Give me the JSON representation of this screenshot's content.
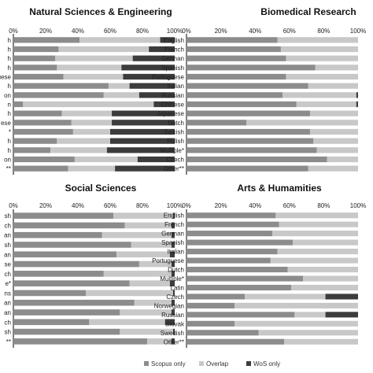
{
  "colors": {
    "scopus_only": "#8c8c8c",
    "overlap": "#c8c8c8",
    "wos_only": "#3c3c3c",
    "axis": "#000000"
  },
  "legend": {
    "scopus_label": "Scopus only",
    "overlap_label": "Overlap",
    "wos_label": "WoS only"
  },
  "chart_data": [
    {
      "type": "bar",
      "orientation": "horizontal",
      "stacked": true,
      "title": "Natural Sciences & Engineering",
      "xlim": [
        0,
        100
      ],
      "xticks": [
        "0%",
        "20%",
        "40%",
        "60%",
        "80%",
        "100%"
      ],
      "categories": [
        "h",
        "h",
        "h",
        "h",
        "guese",
        "h",
        "on",
        "n",
        "h",
        "ese",
        "*",
        "h",
        "h",
        "on",
        "**"
      ],
      "series": [
        {
          "name": "Scopus only",
          "values": [
            41,
            28,
            26,
            27,
            31,
            59,
            56,
            6,
            30,
            36,
            37,
            27,
            23,
            38,
            34
          ]
        },
        {
          "name": "Overlap",
          "values": [
            50,
            56,
            48,
            40,
            37,
            13,
            22,
            81,
            31,
            25,
            23,
            33,
            35,
            39,
            29
          ]
        },
        {
          "name": "WoS only",
          "values": [
            9,
            16,
            26,
            33,
            32,
            28,
            22,
            13,
            39,
            39,
            40,
            40,
            42,
            23,
            37
          ]
        }
      ]
    },
    {
      "type": "bar",
      "orientation": "horizontal",
      "stacked": true,
      "title": "Biomedical Research",
      "xlim": [
        0,
        100
      ],
      "xticks": [
        "0%",
        "20%",
        "40%",
        "60%",
        "80%",
        "100%"
      ],
      "categories": [
        "English",
        "French",
        "German",
        "Spanish",
        "Portuguese",
        "Italian",
        "Russian",
        "Chinese",
        "Japanese",
        "Dutch",
        "Turkish",
        "Polish",
        "Multiple*",
        "Czech",
        "Other**"
      ],
      "series": [
        {
          "name": "Scopus only",
          "values": [
            53,
            55,
            58,
            75,
            58,
            71,
            56,
            64,
            72,
            35,
            72,
            74,
            76,
            82,
            71
          ]
        },
        {
          "name": "Overlap",
          "values": [
            47,
            45,
            42,
            25,
            42,
            29,
            43,
            35,
            28,
            65,
            28,
            26,
            24,
            18,
            29
          ]
        },
        {
          "name": "WoS only",
          "values": [
            0,
            0,
            0,
            0,
            0,
            0,
            1,
            1,
            0,
            0,
            0,
            0,
            0,
            0,
            0
          ]
        }
      ]
    },
    {
      "type": "bar",
      "orientation": "horizontal",
      "stacked": true,
      "title": "Social Sciences",
      "xlim": [
        0,
        100
      ],
      "xticks": [
        "0%",
        "20%",
        "40%",
        "60%",
        "80%",
        "100%"
      ],
      "categories": [
        "sh",
        "ch",
        "an",
        "sh",
        "an",
        "se",
        "ch",
        "e*",
        "ns",
        "an",
        "an",
        "ch",
        "sh",
        "**"
      ],
      "series": [
        {
          "name": "Scopus only",
          "values": [
            62,
            69,
            55,
            73,
            64,
            78,
            56,
            72,
            45,
            75,
            66,
            47,
            66,
            83
          ]
        },
        {
          "name": "Overlap",
          "values": [
            37,
            29,
            43,
            25,
            33,
            20,
            42,
            25,
            54,
            23,
            32,
            47,
            33,
            15
          ]
        },
        {
          "name": "WoS only",
          "values": [
            1,
            2,
            2,
            2,
            3,
            2,
            2,
            3,
            1,
            2,
            2,
            6,
            1,
            2
          ]
        }
      ]
    },
    {
      "type": "bar",
      "orientation": "horizontal",
      "stacked": true,
      "title": "Arts & Humamities",
      "xlim": [
        0,
        100
      ],
      "xticks": [
        "0%",
        "20%",
        "40%",
        "60%",
        "80%",
        "100%"
      ],
      "categories": [
        "English",
        "French",
        "German",
        "Spanish",
        "Italian",
        "Portuguese",
        "Dutch",
        "Multiple*",
        "Latin",
        "Czech",
        "Norwegian",
        "Russian",
        "Slovak",
        "Swedish",
        "Other**"
      ],
      "series": [
        {
          "name": "Scopus only",
          "values": [
            52,
            54,
            50,
            62,
            53,
            49,
            59,
            68,
            61,
            34,
            28,
            63,
            28,
            42,
            57
          ]
        },
        {
          "name": "Overlap",
          "values": [
            48,
            46,
            50,
            38,
            47,
            51,
            41,
            32,
            39,
            47,
            72,
            18,
            72,
            58,
            43
          ]
        },
        {
          "name": "WoS only",
          "values": [
            0,
            0,
            0,
            0,
            0,
            0,
            0,
            0,
            0,
            19,
            0,
            19,
            0,
            0,
            0
          ]
        }
      ]
    }
  ]
}
